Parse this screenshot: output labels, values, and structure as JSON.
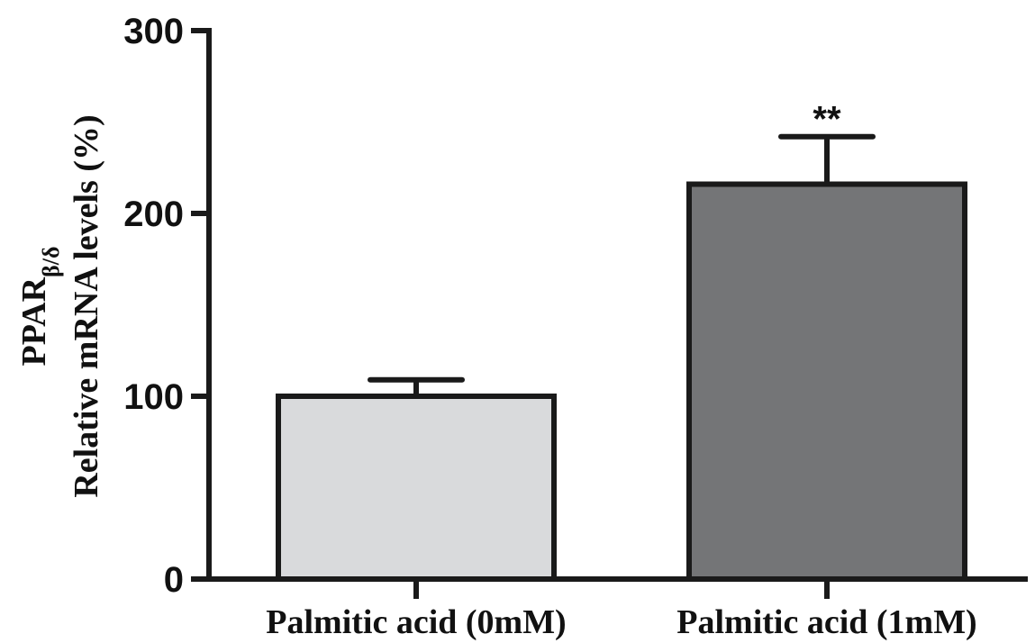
{
  "chart_data": {
    "type": "bar",
    "categories": [
      "Palmitic acid (0mM)",
      "Palmitic acid (1mM)"
    ],
    "values": [
      100,
      216
    ],
    "errors": [
      9,
      26
    ],
    "ylim": [
      0,
      300
    ],
    "yticks": [
      0,
      100,
      200,
      300
    ],
    "ylabel_line1": "PPAR",
    "ylabel_line1_sub": "β/δ",
    "ylabel_line2": "Relative mRNA levels (%)",
    "annotations": [
      {
        "category": "Palmitic acid (1mM)",
        "text": "**"
      }
    ],
    "bar_colors": [
      "#d9dadc",
      "#747577"
    ],
    "grid": false
  }
}
